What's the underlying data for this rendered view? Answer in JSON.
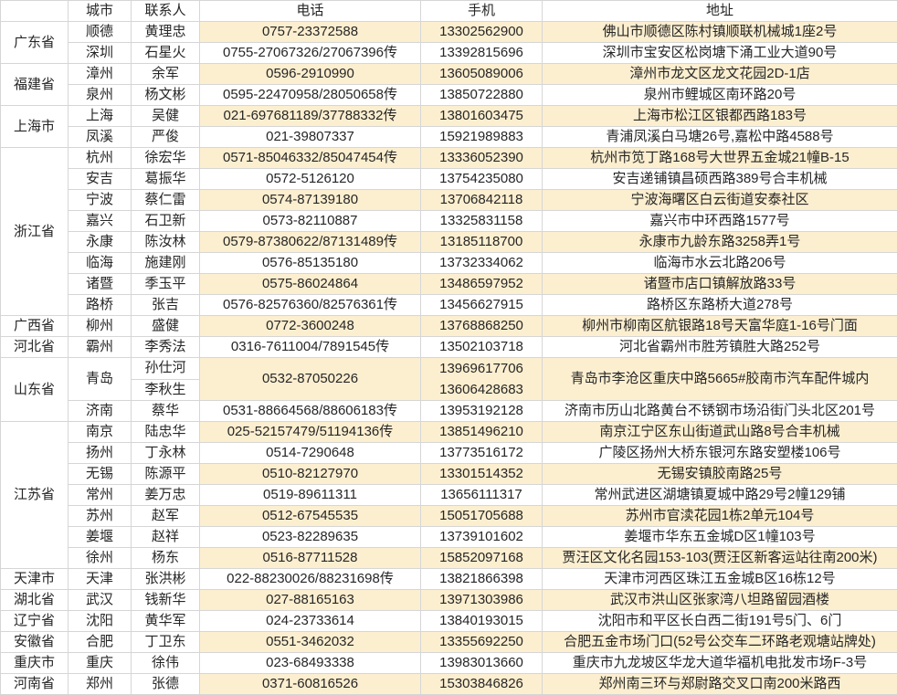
{
  "colors": {
    "stripe": "#fcefd0",
    "border": "#d6d6d6",
    "text": "#262626"
  },
  "table": {
    "headers": [
      "",
      "城市",
      "联系人",
      "电话",
      "手机",
      "地址"
    ],
    "groups": [
      {
        "province": "广东省",
        "rows": [
          {
            "city": "顺德",
            "contact": "黄理忠",
            "phone": "0757-23372588",
            "mobile": "13302562900",
            "address": "佛山市顺德区陈村镇顺联机械城1座2号"
          },
          {
            "city": "深圳",
            "contact": "石星火",
            "phone": "0755-27067326/27067396传",
            "mobile": "13392815696",
            "address": "深圳市宝安区松岗塘下涌工业大道90号"
          }
        ]
      },
      {
        "province": "福建省",
        "rows": [
          {
            "city": "漳州",
            "contact": "余军",
            "phone": "0596-2910990",
            "mobile": "13605089006",
            "address": "漳州市龙文区龙文花园2D-1店"
          },
          {
            "city": "泉州",
            "contact": "杨文彬",
            "phone": "0595-22470958/28050658传",
            "mobile": "13850722880",
            "address": "泉州市鲤城区南环路20号"
          }
        ]
      },
      {
        "province": "上海市",
        "rows": [
          {
            "city": "上海",
            "contact": "吴健",
            "phone": "021-697681189/37788332传",
            "mobile": "13801603475",
            "address": "上海市松江区银都西路183号"
          },
          {
            "city": "凤溪",
            "contact": "严俊",
            "phone": "021-39807337",
            "mobile": "15921989883",
            "address": "青浦凤溪白马塘26号,嘉松中路4588号"
          }
        ]
      },
      {
        "province": "浙江省",
        "rows": [
          {
            "city": "杭州",
            "contact": "徐宏华",
            "phone": "0571-85046332/85047454传",
            "mobile": "13336052390",
            "address": "杭州市笕丁路168号大世界五金城21幢B-15"
          },
          {
            "city": "安吉",
            "contact": "葛振华",
            "phone": "0572-5126120",
            "mobile": "13754235080",
            "address": "安吉递铺镇昌硕西路389号合丰机械"
          },
          {
            "city": "宁波",
            "contact": "蔡仁雷",
            "phone": "0574-87139180",
            "mobile": "13706842118",
            "address": "宁波海曙区白云街道安泰社区"
          },
          {
            "city": "嘉兴",
            "contact": "石卫新",
            "phone": "0573-82110887",
            "mobile": "13325831158",
            "address": "嘉兴市中环西路1577号"
          },
          {
            "city": "永康",
            "contact": "陈汝林",
            "phone": "0579-87380622/87131489传",
            "mobile": "13185118700",
            "address": "永康市九龄东路3258弄1号"
          },
          {
            "city": "临海",
            "contact": "施建刚",
            "phone": "0576-85135180",
            "mobile": "13732334062",
            "address": "临海市水云北路206号"
          },
          {
            "city": "诸暨",
            "contact": "季玉平",
            "phone": "0575-86024864",
            "mobile": "13486597952",
            "address": "诸暨市店口镇解放路33号"
          },
          {
            "city": "路桥",
            "contact": "张吉",
            "phone": "0576-82576360/82576361传",
            "mobile": "13456627915",
            "address": "路桥区东路桥大道278号"
          }
        ]
      },
      {
        "province": "广西省",
        "rows": [
          {
            "city": "柳州",
            "contact": "盛健",
            "phone": "0772-3600248",
            "mobile": "13768868250",
            "address": "柳州市柳南区航银路18号天富华庭1-16号门面"
          }
        ]
      },
      {
        "province": "河北省",
        "rows": [
          {
            "city": "霸州",
            "contact": "李秀法",
            "phone": "0316-7611004/7891545传",
            "mobile": "13502103718",
            "address": "河北省霸州市胜芳镇胜大路252号"
          }
        ]
      },
      {
        "province": "山东省",
        "rows": [
          {
            "city": "青岛",
            "contacts": [
              "孙仕河",
              "李秋生"
            ],
            "phone": "0532-87050226",
            "mobiles": [
              "13969617706",
              "13606428683"
            ],
            "address": "青岛市李沧区重庆中路5665#胶南市汽车配件城内"
          },
          {
            "city": "济南",
            "contact": "蔡华",
            "phone": "0531-88664568/88606183传",
            "mobile": "13953192128",
            "address": "济南市历山北路黄台不锈钢市场沿街门头北区201号"
          }
        ]
      },
      {
        "province": "江苏省",
        "rows": [
          {
            "city": "南京",
            "contact": "陆忠华",
            "phone": "025-52157479/51194136传",
            "mobile": "13851496210",
            "address": "南京江宁区东山街道武山路8号合丰机械"
          },
          {
            "city": "扬州",
            "contact": "丁永林",
            "phone": "0514-7290648",
            "mobile": "13773516172",
            "address": "广陵区扬州大桥东银河东路安塑楼106号"
          },
          {
            "city": "无锡",
            "contact": "陈源平",
            "phone": "0510-82127970",
            "mobile": "13301514352",
            "address": "无锡安镇胶南路25号"
          },
          {
            "city": "常州",
            "contact": "姜万忠",
            "phone": "0519-89611311",
            "mobile": "13656111317",
            "address": "常州武进区湖塘镇夏城中路29号2幢129铺"
          },
          {
            "city": "苏州",
            "contact": "赵军",
            "phone": "0512-67545535",
            "mobile": "15051705688",
            "address": "苏州市官渎花园1栋2单元104号"
          },
          {
            "city": "姜堰",
            "contact": "赵祥",
            "phone": "0523-82289635",
            "mobile": "13739101602",
            "address": "姜堰市华东五金城D区1幢103号"
          },
          {
            "city": "徐州",
            "contact": "杨东",
            "phone": "0516-87711528",
            "mobile": "15852097168",
            "address": "贾汪区文化名园153-103(贾汪区新客运站往南200米)"
          }
        ]
      },
      {
        "province": "天津市",
        "rows": [
          {
            "city": "天津",
            "contact": "张洪彬",
            "phone": "022-88230026/88231698传",
            "mobile": "13821866398",
            "address": "天津市河西区珠江五金城B区16栋12号"
          }
        ]
      },
      {
        "province": "湖北省",
        "rows": [
          {
            "city": "武汉",
            "contact": "钱新华",
            "phone": "027-88165163",
            "mobile": "13971303986",
            "address": "武汉市洪山区张家湾八坦路留园酒楼"
          }
        ]
      },
      {
        "province": "辽宁省",
        "rows": [
          {
            "city": "沈阳",
            "contact": "黄华军",
            "phone": "024-23733614",
            "mobile": "13840193015",
            "address": "沈阳市和平区长白西二街191号5门、6门"
          }
        ]
      },
      {
        "province": "安徽省",
        "rows": [
          {
            "city": "合肥",
            "contact": "丁卫东",
            "phone": "0551-3462032",
            "mobile": "13355692250",
            "address": "合肥五金市场门口(52号公交车二环路老观塘站牌处)"
          }
        ]
      },
      {
        "province": "重庆市",
        "rows": [
          {
            "city": "重庆",
            "contact": "徐伟",
            "phone": "023-68493338",
            "mobile": "13983013660",
            "address": "重庆市九龙坡区华龙大道华福机电批发市场F-3号"
          }
        ]
      },
      {
        "province": "河南省",
        "rows": [
          {
            "city": "郑州",
            "contact": "张德",
            "phone": "0371-60816526",
            "mobile": "15303846826",
            "address": "郑州南三环与郑尉路交叉口南200米路西"
          }
        ]
      }
    ]
  }
}
